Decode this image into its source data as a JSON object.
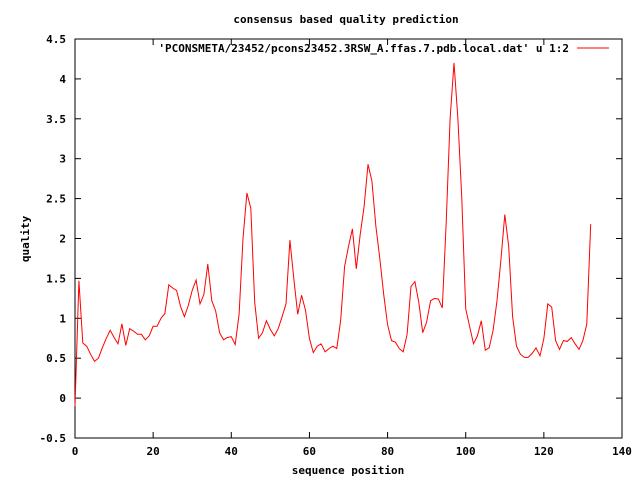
{
  "chart_data": {
    "type": "line",
    "title": "consensus based quality prediction",
    "xlabel": "sequence position",
    "ylabel": "quality",
    "xlim": [
      0,
      140
    ],
    "ylim": [
      -0.5,
      4.5
    ],
    "xticks": [
      "0",
      "20",
      "40",
      "60",
      "80",
      "100",
      "120",
      "140"
    ],
    "yticks": [
      "-0.5",
      "0",
      "0.5",
      "1",
      "1.5",
      "2",
      "2.5",
      "3",
      "3.5",
      "4",
      "4.5"
    ],
    "grid": false,
    "legend_position": "top-right",
    "series": [
      {
        "name": "'PCONSMETA/23452/pcons23452.3RSW_A.ffas.7.pdb.local.dat' u 1:2",
        "color": "#ff0000",
        "x": [
          0,
          1,
          2,
          3,
          4,
          5,
          6,
          7,
          8,
          9,
          10,
          11,
          12,
          13,
          14,
          15,
          16,
          17,
          18,
          19,
          20,
          21,
          22,
          23,
          24,
          25,
          26,
          27,
          28,
          29,
          30,
          31,
          32,
          33,
          34,
          35,
          36,
          37,
          38,
          39,
          40,
          41,
          42,
          43,
          44,
          45,
          46,
          47,
          48,
          49,
          50,
          51,
          52,
          53,
          54,
          55,
          56,
          57,
          58,
          59,
          60,
          61,
          62,
          63,
          64,
          65,
          66,
          67,
          68,
          69,
          70,
          71,
          72,
          73,
          74,
          75,
          76,
          77,
          78,
          79,
          80,
          81,
          82,
          83,
          84,
          85,
          86,
          87,
          88,
          89,
          90,
          91,
          92,
          93,
          94,
          95,
          96,
          97,
          98,
          99,
          100,
          101,
          102,
          103,
          104,
          105,
          106,
          107,
          108,
          109,
          110,
          111,
          112,
          113,
          114,
          115,
          116,
          117,
          118,
          119,
          120,
          121,
          122,
          123,
          124,
          125,
          126,
          127,
          128,
          129,
          130,
          131,
          132
        ],
        "y": [
          -0.1,
          1.47,
          0.69,
          0.65,
          0.55,
          0.46,
          0.5,
          0.63,
          0.75,
          0.85,
          0.76,
          0.68,
          0.93,
          0.66,
          0.87,
          0.84,
          0.8,
          0.8,
          0.73,
          0.78,
          0.9,
          0.9,
          1.0,
          1.06,
          1.42,
          1.38,
          1.35,
          1.15,
          1.02,
          1.16,
          1.35,
          1.48,
          1.18,
          1.3,
          1.68,
          1.22,
          1.09,
          0.82,
          0.73,
          0.76,
          0.77,
          0.67,
          1.05,
          2.0,
          2.57,
          2.38,
          1.2,
          0.75,
          0.82,
          0.97,
          0.86,
          0.78,
          0.87,
          1.02,
          1.18,
          1.98,
          1.5,
          1.05,
          1.29,
          1.1,
          0.75,
          0.57,
          0.65,
          0.68,
          0.58,
          0.62,
          0.65,
          0.62,
          0.98,
          1.65,
          1.9,
          2.12,
          1.62,
          2.05,
          2.4,
          2.93,
          2.72,
          2.15,
          1.75,
          1.3,
          0.92,
          0.72,
          0.7,
          0.62,
          0.58,
          0.8,
          1.4,
          1.46,
          1.2,
          0.82,
          0.95,
          1.22,
          1.25,
          1.24,
          1.13,
          2.2,
          3.5,
          4.2,
          3.5,
          2.5,
          1.12,
          0.9,
          0.68,
          0.78,
          0.97,
          0.6,
          0.63,
          0.85,
          1.22,
          1.73,
          2.3,
          1.9,
          1.02,
          0.65,
          0.55,
          0.51,
          0.51,
          0.56,
          0.63,
          0.53,
          0.75,
          1.18,
          1.14,
          0.72,
          0.61,
          0.72,
          0.71,
          0.76,
          0.68,
          0.61,
          0.72,
          0.93,
          2.18
        ]
      }
    ]
  }
}
